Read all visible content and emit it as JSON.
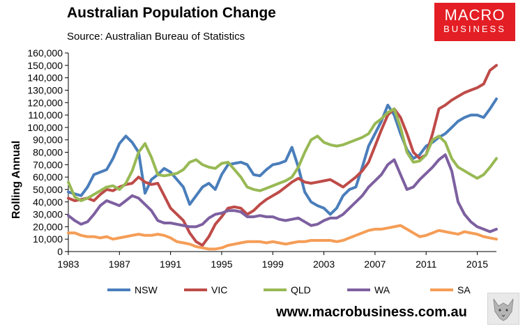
{
  "header": {
    "title": "Australian Population Change",
    "source": "Source: Australian Bureau of Statistics"
  },
  "logo": {
    "line1": "MACRO",
    "line2": "BUSINESS"
  },
  "footer": {
    "url": "www.macrobusiness.com.au",
    "icon": "wolf-icon"
  },
  "chart_data": {
    "type": "line",
    "title": "Australian Population Change",
    "xlabel": "",
    "ylabel": "Rolling Annual",
    "xlim": [
      1983,
      2016.5
    ],
    "ylim": [
      0,
      160000
    ],
    "yticks": [
      0,
      10000,
      20000,
      30000,
      40000,
      50000,
      60000,
      70000,
      80000,
      90000,
      100000,
      110000,
      120000,
      130000,
      140000,
      150000,
      160000
    ],
    "ytick_labels": [
      "0",
      "10,000",
      "20,000",
      "30,000",
      "40,000",
      "50,000",
      "60,000",
      "70,000",
      "80,000",
      "90,000",
      "100,000",
      "110,000",
      "120,000",
      "130,000",
      "140,000",
      "150,000",
      "160,000"
    ],
    "xticks": [
      1983,
      1987,
      1991,
      1995,
      1999,
      2003,
      2007,
      2011,
      2015
    ],
    "xtick_labels": [
      "1983",
      "1987",
      "1991",
      "1995",
      "1999",
      "2003",
      "2007",
      "2011",
      "2015"
    ],
    "grid": false,
    "legend_position": "bottom",
    "series": [
      {
        "name": "NSW",
        "color": "#4a7ebb",
        "x": [
          1983,
          1984,
          1984.5,
          1985,
          1986,
          1986.5,
          1987,
          1987.5,
          1988,
          1988.5,
          1989,
          1989.5,
          1990,
          1990.5,
          1991,
          1991.5,
          1992,
          1992.5,
          1993,
          1993.5,
          1994,
          1994.5,
          1995,
          1995.5,
          1996,
          1996.5,
          1997,
          1997.5,
          1998,
          1998.5,
          1999,
          1999.5,
          2000,
          2000.5,
          2001,
          2001.5,
          2002,
          2002.5,
          2003,
          2003.5,
          2004,
          2004.5,
          2005,
          2005.5,
          2006,
          2006.5,
          2007,
          2007.5,
          2008,
          2008.5,
          2009,
          2009.5,
          2010,
          2010.5,
          2011,
          2011.5,
          2012,
          2012.5,
          2013,
          2013.5,
          2014,
          2014.5,
          2015,
          2015.5,
          2016,
          2016.5
        ],
        "values": [
          48000,
          45000,
          52000,
          62000,
          66000,
          75000,
          87000,
          93000,
          88000,
          80000,
          47000,
          58000,
          62000,
          67000,
          64000,
          58000,
          52000,
          38000,
          45000,
          52000,
          55000,
          50000,
          62000,
          70000,
          71000,
          72000,
          70000,
          62000,
          61000,
          66000,
          70000,
          71000,
          73000,
          84000,
          68000,
          48000,
          40000,
          37000,
          35000,
          30000,
          35000,
          45000,
          50000,
          52000,
          68000,
          85000,
          95000,
          105000,
          118000,
          110000,
          95000,
          82000,
          75000,
          78000,
          85000,
          88000,
          92000,
          95000,
          100000,
          105000,
          108000,
          110000,
          110000,
          108000,
          115000,
          123000
        ]
      },
      {
        "name": "VIC",
        "color": "#be4b48",
        "x": [
          1983,
          1983.5,
          1984,
          1984.5,
          1985,
          1985.5,
          1986,
          1986.5,
          1987,
          1987.5,
          1988,
          1988.5,
          1989,
          1989.5,
          1990,
          1990.5,
          1991,
          1991.5,
          1992,
          1992.5,
          1993,
          1993.5,
          1994,
          1994.5,
          1995,
          1995.5,
          1996,
          1996.5,
          1997,
          1997.5,
          1998,
          1998.5,
          1999,
          1999.5,
          2000,
          2000.5,
          2001,
          2001.5,
          2002,
          2002.5,
          2003,
          2003.5,
          2004,
          2004.5,
          2005,
          2005.5,
          2006,
          2006.5,
          2007,
          2007.5,
          2008,
          2008.5,
          2009,
          2009.5,
          2010,
          2010.5,
          2011,
          2011.5,
          2012,
          2012.5,
          2013,
          2013.5,
          2014,
          2014.5,
          2015,
          2015.5,
          2016,
          2016.5
        ],
        "values": [
          43000,
          41000,
          42000,
          43000,
          41000,
          46000,
          50000,
          49000,
          52000,
          54000,
          55000,
          60000,
          56000,
          54000,
          55000,
          45000,
          35000,
          30000,
          25000,
          15000,
          8000,
          5000,
          12000,
          22000,
          28000,
          35000,
          36000,
          35000,
          30000,
          33000,
          38000,
          42000,
          45000,
          48000,
          52000,
          56000,
          59000,
          56000,
          55000,
          56000,
          57000,
          58000,
          55000,
          52000,
          56000,
          60000,
          65000,
          72000,
          85000,
          98000,
          110000,
          115000,
          108000,
          95000,
          80000,
          75000,
          78000,
          95000,
          115000,
          118000,
          122000,
          125000,
          128000,
          130000,
          132000,
          135000,
          146000,
          150000
        ]
      },
      {
        "name": "QLD",
        "color": "#98b954",
        "x": [
          1983,
          1983.5,
          1984,
          1984.5,
          1985,
          1985.5,
          1986,
          1986.5,
          1987,
          1987.5,
          1988,
          1988.5,
          1989,
          1989.5,
          1990,
          1990.5,
          1991,
          1991.5,
          1992,
          1992.5,
          1993,
          1993.5,
          1994,
          1994.5,
          1995,
          1995.5,
          1996,
          1996.5,
          1997,
          1997.5,
          1998,
          1998.5,
          1999,
          1999.5,
          2000,
          2000.5,
          2001,
          2001.5,
          2002,
          2002.5,
          2003,
          2003.5,
          2004,
          2004.5,
          2005,
          2005.5,
          2006,
          2006.5,
          2007,
          2007.5,
          2008,
          2008.5,
          2009,
          2009.5,
          2010,
          2010.5,
          2011,
          2011.5,
          2012,
          2012.5,
          2013,
          2013.5,
          2014,
          2014.5,
          2015,
          2015.5,
          2016,
          2016.5
        ],
        "values": [
          56000,
          44000,
          41000,
          43000,
          46000,
          49000,
          52000,
          53000,
          50000,
          55000,
          65000,
          80000,
          87000,
          76000,
          62000,
          61000,
          62000,
          63000,
          66000,
          72000,
          74000,
          70000,
          68000,
          67000,
          71000,
          72000,
          66000,
          60000,
          52000,
          50000,
          49000,
          51000,
          53000,
          55000,
          57000,
          60000,
          68000,
          80000,
          90000,
          93000,
          88000,
          86000,
          85000,
          86000,
          88000,
          90000,
          92000,
          95000,
          103000,
          107000,
          112000,
          115000,
          100000,
          80000,
          72000,
          73000,
          78000,
          90000,
          93000,
          88000,
          75000,
          68000,
          65000,
          62000,
          59000,
          62000,
          68000,
          75000
        ]
      },
      {
        "name": "WA",
        "color": "#7d60a0",
        "x": [
          1983,
          1983.5,
          1984,
          1984.5,
          1985,
          1985.5,
          1986,
          1986.5,
          1987,
          1987.5,
          1988,
          1988.5,
          1989,
          1989.5,
          1990,
          1990.5,
          1991,
          1991.5,
          1992,
          1992.5,
          1993,
          1993.5,
          1994,
          1994.5,
          1995,
          1995.5,
          1996,
          1996.5,
          1997,
          1997.5,
          1998,
          1998.5,
          1999,
          1999.5,
          2000,
          2000.5,
          2001,
          2001.5,
          2002,
          2002.5,
          2003,
          2003.5,
          2004,
          2004.5,
          2005,
          2005.5,
          2006,
          2006.5,
          2007,
          2007.5,
          2008,
          2008.5,
          2009,
          2009.5,
          2010,
          2010.5,
          2011,
          2011.5,
          2012,
          2012.5,
          2013,
          2013.5,
          2014,
          2014.5,
          2015,
          2015.5,
          2016,
          2016.5
        ],
        "values": [
          29000,
          25000,
          22000,
          24000,
          30000,
          37000,
          41000,
          39000,
          37000,
          41000,
          45000,
          43000,
          38000,
          33000,
          25000,
          23000,
          23000,
          22000,
          21000,
          20000,
          20000,
          22000,
          27000,
          30000,
          31000,
          33000,
          33000,
          32000,
          28000,
          28000,
          29000,
          28000,
          28000,
          26000,
          25000,
          26000,
          27000,
          24000,
          21000,
          22000,
          25000,
          27000,
          27000,
          30000,
          35000,
          40000,
          45000,
          52000,
          57000,
          62000,
          70000,
          74000,
          62000,
          50000,
          52000,
          58000,
          63000,
          68000,
          74000,
          78000,
          65000,
          40000,
          30000,
          24000,
          20000,
          18000,
          16000,
          18000
        ]
      },
      {
        "name": "SA",
        "color": "#f59d56",
        "x": [
          1983,
          1983.5,
          1984,
          1984.5,
          1985,
          1985.5,
          1986,
          1986.5,
          1987,
          1987.5,
          1988,
          1988.5,
          1989,
          1989.5,
          1990,
          1990.5,
          1991,
          1991.5,
          1992,
          1992.5,
          1993,
          1993.5,
          1994,
          1994.5,
          1995,
          1995.5,
          1996,
          1996.5,
          1997,
          1997.5,
          1998,
          1998.5,
          1999,
          1999.5,
          2000,
          2000.5,
          2001,
          2001.5,
          2002,
          2002.5,
          2003,
          2003.5,
          2004,
          2004.5,
          2005,
          2005.5,
          2006,
          2006.5,
          2007,
          2007.5,
          2008,
          2008.5,
          2009,
          2009.5,
          2010,
          2010.5,
          2011,
          2011.5,
          2012,
          2012.5,
          2013,
          2013.5,
          2014,
          2014.5,
          2015,
          2015.5,
          2016,
          2016.5
        ],
        "values": [
          15000,
          15000,
          13000,
          12000,
          12000,
          11000,
          12000,
          10000,
          11000,
          12000,
          13000,
          14000,
          13000,
          13000,
          14000,
          13000,
          11000,
          8000,
          7000,
          6000,
          4000,
          3000,
          2000,
          2000,
          3000,
          5000,
          6000,
          7000,
          8000,
          8000,
          8000,
          7000,
          8000,
          7000,
          6000,
          7000,
          8000,
          8000,
          9000,
          9000,
          9000,
          9000,
          8000,
          9000,
          11000,
          13000,
          15000,
          17000,
          18000,
          18000,
          19000,
          20000,
          21000,
          18000,
          15000,
          12000,
          13000,
          15000,
          17000,
          16000,
          15000,
          14000,
          16000,
          15000,
          14000,
          12000,
          11000,
          10000
        ]
      }
    ]
  }
}
